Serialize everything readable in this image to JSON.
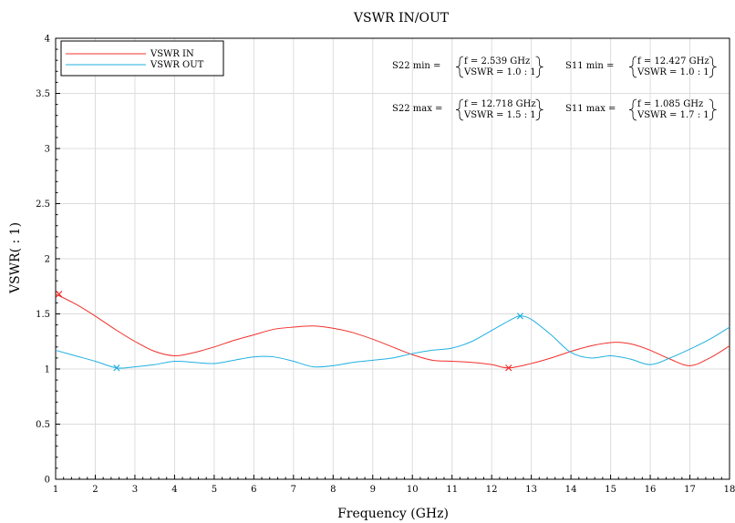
{
  "chart_data": {
    "type": "line",
    "title": "VSWR IN/OUT",
    "xlabel": "Frequency (GHz)",
    "ylabel": "VSWR( : 1)",
    "xlim": [
      1,
      18
    ],
    "ylim": [
      0,
      4
    ],
    "x_ticks": [
      "1",
      "2",
      "3",
      "4",
      "5",
      "6",
      "7",
      "8",
      "9",
      "10",
      "11",
      "12",
      "13",
      "14",
      "15",
      "16",
      "17",
      "18"
    ],
    "y_ticks": [
      "0",
      "0.5",
      "1",
      "1.5",
      "2",
      "2.5",
      "3",
      "3.5",
      "4"
    ],
    "grid": true,
    "legend_position": "top-left",
    "series": [
      {
        "name": "VSWR IN",
        "color": "#f0302c",
        "x": [
          1.0,
          1.5,
          2.0,
          2.5,
          3.0,
          3.5,
          4.0,
          4.5,
          5.0,
          5.5,
          6.0,
          6.5,
          7.0,
          7.5,
          8.0,
          8.5,
          9.0,
          9.5,
          10.0,
          10.5,
          11.0,
          11.5,
          12.0,
          12.43,
          13.0,
          13.5,
          14.0,
          14.5,
          15.0,
          15.3,
          15.6,
          16.0,
          16.5,
          17.0,
          17.5,
          18.0
        ],
        "y": [
          1.68,
          1.59,
          1.48,
          1.36,
          1.25,
          1.16,
          1.12,
          1.15,
          1.2,
          1.26,
          1.31,
          1.36,
          1.38,
          1.39,
          1.37,
          1.33,
          1.27,
          1.2,
          1.13,
          1.08,
          1.07,
          1.06,
          1.04,
          1.01,
          1.05,
          1.1,
          1.16,
          1.21,
          1.24,
          1.24,
          1.22,
          1.17,
          1.09,
          1.03,
          1.1,
          1.21
        ]
      },
      {
        "name": "VSWR OUT",
        "color": "#20b0e0",
        "x": [
          1.0,
          1.5,
          2.0,
          2.54,
          3.0,
          3.5,
          4.0,
          4.5,
          5.0,
          5.5,
          6.0,
          6.5,
          7.0,
          7.5,
          8.0,
          8.5,
          9.0,
          9.5,
          10.0,
          10.5,
          11.0,
          11.5,
          12.0,
          12.5,
          12.72,
          13.0,
          13.5,
          14.0,
          14.5,
          15.0,
          15.5,
          16.0,
          16.5,
          17.0,
          17.5,
          18.0
        ],
        "y": [
          1.17,
          1.12,
          1.07,
          1.01,
          1.02,
          1.04,
          1.07,
          1.06,
          1.05,
          1.08,
          1.11,
          1.11,
          1.07,
          1.02,
          1.03,
          1.06,
          1.08,
          1.1,
          1.14,
          1.17,
          1.19,
          1.25,
          1.35,
          1.45,
          1.48,
          1.45,
          1.31,
          1.15,
          1.1,
          1.12,
          1.09,
          1.04,
          1.1,
          1.18,
          1.27,
          1.38
        ]
      }
    ],
    "markers": [
      {
        "series": "VSWR IN",
        "x": 1.085,
        "y": 1.68
      },
      {
        "series": "VSWR IN",
        "x": 12.427,
        "y": 1.01
      },
      {
        "series": "VSWR OUT",
        "x": 2.539,
        "y": 1.01
      },
      {
        "series": "VSWR OUT",
        "x": 12.718,
        "y": 1.48
      }
    ],
    "annotations": [
      {
        "label": "S22 min =",
        "line1": "f = 2.539 GHz",
        "line2": "VSWR = 1.0 : 1"
      },
      {
        "label": "S11 min =",
        "line1": "f = 12.427 GHz",
        "line2": "VSWR = 1.0 : 1"
      },
      {
        "label": "S22 max =",
        "line1": "f = 12.718 GHz",
        "line2": "VSWR = 1.5 : 1"
      },
      {
        "label": "S11 max =",
        "line1": "f = 1.085 GHz",
        "line2": "VSWR = 1.7 : 1"
      }
    ]
  }
}
